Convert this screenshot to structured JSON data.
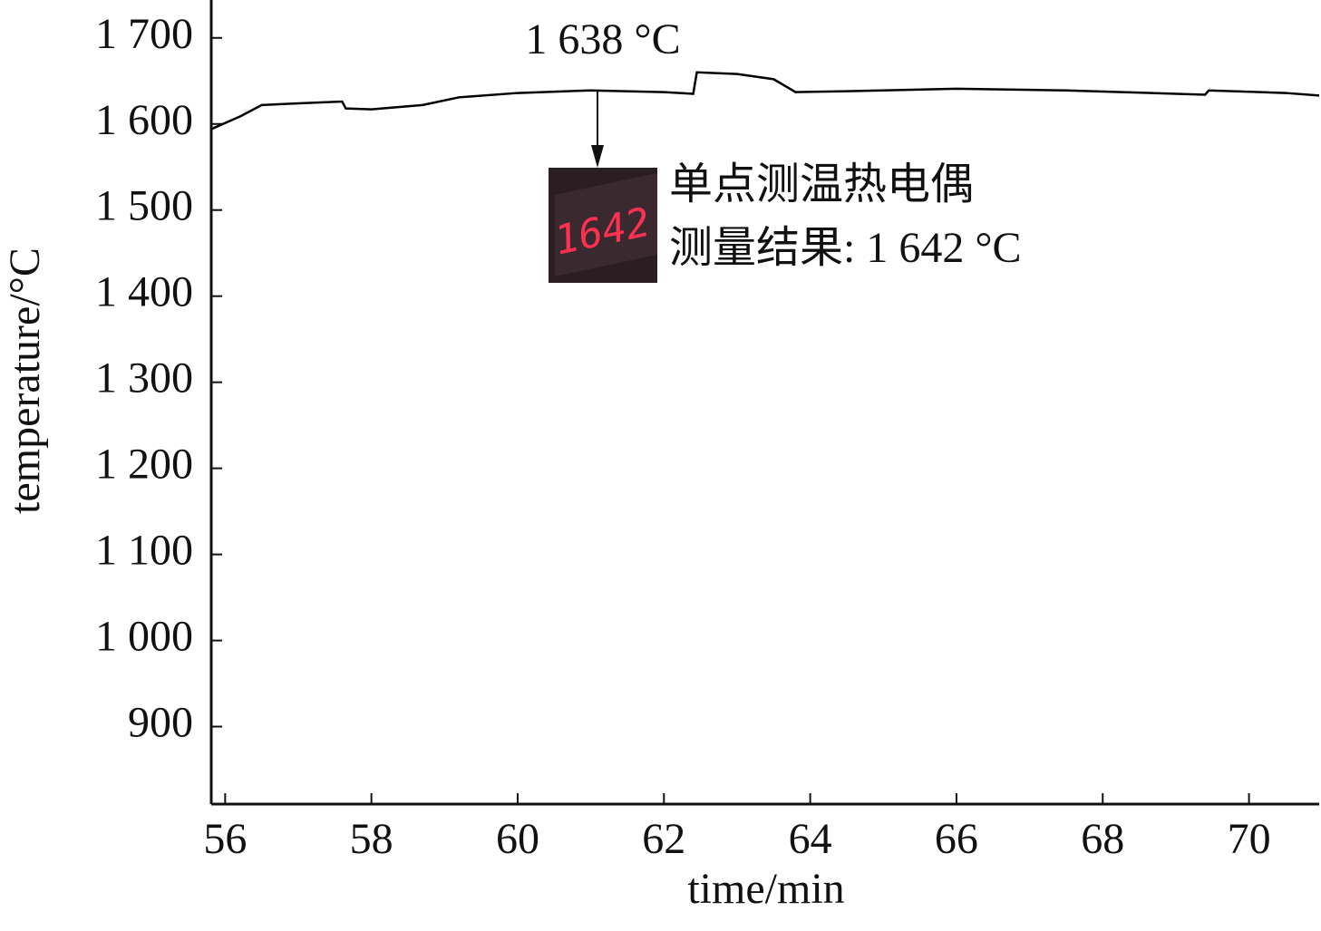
{
  "chart_data": {
    "type": "line",
    "x_label": "time/min",
    "y_label": "temperature/°C",
    "x": [
      55.81,
      56.21,
      56.5,
      57.0,
      57.6,
      57.65,
      58.0,
      58.7,
      59.2,
      60.0,
      61.0,
      62.0,
      62.4,
      62.45,
      63.0,
      63.5,
      63.8,
      64.5,
      66.0,
      67.5,
      69.4,
      69.45,
      70.5,
      70.96
    ],
    "series": [
      {
        "color": "#000000",
        "values": [
          1594,
          1609,
          1622,
          1624,
          1626,
          1618,
          1617,
          1622,
          1631,
          1636,
          1639,
          1637,
          1635,
          1660,
          1658,
          1652,
          1637,
          1638,
          1641,
          1639,
          1634,
          1639,
          1636,
          1633
        ]
      }
    ],
    "xlim": [
      55.81,
      70.96
    ],
    "ylim": [
      810,
      1744
    ],
    "xticks": [
      56,
      58,
      60,
      62,
      64,
      66,
      68,
      70
    ],
    "yticks": [
      900,
      {
        "value": 1000,
        "label": "1 000"
      },
      {
        "value": 1100,
        "label": "1 100"
      },
      {
        "value": 1200,
        "label": "1 200"
      },
      {
        "value": 1300,
        "label": "1 300"
      },
      {
        "value": 1400,
        "label": "1 400"
      },
      {
        "value": 1500,
        "label": "1 500"
      },
      {
        "value": 1600,
        "label": "1 600"
      },
      {
        "value": 1700,
        "label": "1 700"
      }
    ],
    "annotations": [
      "1 638 °C",
      "单点测温热电偶",
      "测量结果: 1 642 °C"
    ],
    "display_reading": "1642"
  }
}
